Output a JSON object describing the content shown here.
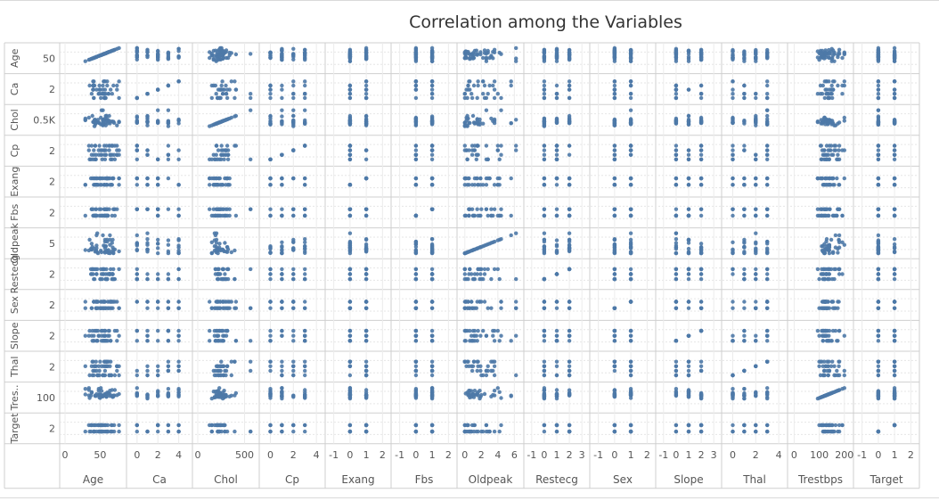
{
  "chart_data": {
    "type": "scatter",
    "title": "Correlation among the Variables",
    "colors": {
      "marks": "#4e79a7",
      "grid": "#d4d4d4",
      "border": "#cfcfcf",
      "text": "#555555"
    },
    "grid": true,
    "variables": [
      {
        "name": "Age",
        "row_label": "Age",
        "y_tick": "50",
        "x_ticks": [
          {
            "v": 0,
            "label": "0"
          },
          {
            "v": 50,
            "label": "50"
          }
        ],
        "x_range": [
          0,
          80
        ],
        "sample": [
          29,
          34,
          35,
          37,
          38,
          39,
          40,
          41,
          41,
          42,
          43,
          44,
          44,
          45,
          45,
          46,
          47,
          48,
          49,
          50,
          51,
          51,
          52,
          52,
          53,
          54,
          54,
          55,
          56,
          56,
          57,
          57,
          58,
          58,
          59,
          59,
          60,
          60,
          61,
          62,
          62,
          63,
          64,
          65,
          66,
          67,
          68,
          69,
          70,
          71,
          74,
          77
        ]
      },
      {
        "name": "Ca",
        "row_label": "Ca",
        "y_tick": "2",
        "x_ticks": [
          {
            "v": 0,
            "label": "0"
          },
          {
            "v": 2,
            "label": "2"
          },
          {
            "v": 4,
            "label": "4"
          }
        ],
        "x_range": [
          -0.5,
          4.8
        ],
        "sample": [
          0,
          1,
          2,
          3,
          4
        ]
      },
      {
        "name": "Chol",
        "row_label": "Chol",
        "y_tick": "0.5K",
        "x_ticks": [
          {
            "v": 0,
            "label": "0"
          },
          {
            "v": 500,
            "label": "500"
          }
        ],
        "x_range": [
          0,
          600
        ],
        "sample": [
          126,
          150,
          170,
          180,
          190,
          197,
          200,
          205,
          210,
          212,
          215,
          220,
          225,
          230,
          233,
          236,
          240,
          245,
          250,
          254,
          258,
          263,
          268,
          270,
          275,
          282,
          290,
          300,
          305,
          315,
          325,
          340,
          360,
          394,
          409,
          564
        ]
      },
      {
        "name": "Cp",
        "row_label": "Cp",
        "y_tick": "2",
        "x_ticks": [
          {
            "v": 0,
            "label": "0"
          },
          {
            "v": 2,
            "label": "2"
          },
          {
            "v": 4,
            "label": "4"
          }
        ],
        "x_range": [
          -0.5,
          4.3
        ],
        "sample": [
          0,
          1,
          2,
          3
        ]
      },
      {
        "name": "Exang",
        "row_label": "Exang",
        "y_tick": "2",
        "x_ticks": [
          {
            "v": -1,
            "label": "-1"
          },
          {
            "v": 0,
            "label": "0"
          },
          {
            "v": 1,
            "label": "1"
          },
          {
            "v": 2,
            "label": "2"
          }
        ],
        "x_range": [
          -1.2,
          2.2
        ],
        "sample": [
          0,
          1
        ]
      },
      {
        "name": "Fbs",
        "row_label": "Fbs",
        "y_tick": "2",
        "x_ticks": [
          {
            "v": -1,
            "label": "-1"
          },
          {
            "v": 0,
            "label": "0"
          },
          {
            "v": 1,
            "label": "1"
          },
          {
            "v": 2,
            "label": "2"
          }
        ],
        "x_range": [
          -1.2,
          2.2
        ],
        "sample": [
          0,
          1
        ]
      },
      {
        "name": "Oldpeak",
        "row_label": "Oldpeak",
        "y_tick": "5",
        "x_ticks": [
          {
            "v": 0,
            "label": "0"
          },
          {
            "v": 2,
            "label": "2"
          },
          {
            "v": 4,
            "label": "4"
          },
          {
            "v": 6,
            "label": "6"
          }
        ],
        "x_range": [
          -0.3,
          6.5
        ],
        "sample": [
          0,
          0,
          0,
          0.1,
          0.2,
          0.3,
          0.4,
          0.5,
          0.6,
          0.8,
          0.9,
          1,
          1.1,
          1.2,
          1.4,
          1.5,
          1.6,
          1.8,
          1.9,
          2,
          2.2,
          2.4,
          2.6,
          2.8,
          3,
          3.2,
          3.4,
          3.6,
          4,
          4.2,
          4.4,
          5.6,
          6.2
        ]
      },
      {
        "name": "Restecg",
        "row_label": "Restecg",
        "y_tick": "2",
        "x_ticks": [
          {
            "v": -1,
            "label": "-1"
          },
          {
            "v": 0,
            "label": "0"
          },
          {
            "v": 1,
            "label": "1"
          },
          {
            "v": 2,
            "label": "2"
          },
          {
            "v": 3,
            "label": "3"
          }
        ],
        "x_range": [
          -1.2,
          3.2
        ],
        "sample": [
          0,
          1,
          2
        ]
      },
      {
        "name": "Sex",
        "row_label": "Sex",
        "y_tick": "2",
        "x_ticks": [
          {
            "v": -1,
            "label": "-1"
          },
          {
            "v": 0,
            "label": "0"
          },
          {
            "v": 1,
            "label": "1"
          },
          {
            "v": 2,
            "label": "2"
          }
        ],
        "x_range": [
          -1.2,
          2.2
        ],
        "sample": [
          0,
          1
        ]
      },
      {
        "name": "Slope",
        "row_label": "Slope",
        "y_tick": "2",
        "x_ticks": [
          {
            "v": -1,
            "label": "-1"
          },
          {
            "v": 0,
            "label": "0"
          },
          {
            "v": 1,
            "label": "1"
          },
          {
            "v": 2,
            "label": "2"
          },
          {
            "v": 3,
            "label": "3"
          }
        ],
        "x_range": [
          -1.2,
          3.2
        ],
        "sample": [
          0,
          1,
          2
        ]
      },
      {
        "name": "Thal",
        "row_label": "Thal",
        "y_tick": "2",
        "x_ticks": [
          {
            "v": 0,
            "label": "0"
          },
          {
            "v": 2,
            "label": "2"
          },
          {
            "v": 4,
            "label": "4"
          }
        ],
        "x_range": [
          -0.5,
          4.3
        ],
        "sample": [
          0,
          1,
          2,
          3
        ]
      },
      {
        "name": "Trestbps",
        "row_label": "Tres..",
        "y_tick": "100",
        "x_ticks": [
          {
            "v": 0,
            "label": "0"
          },
          {
            "v": 100,
            "label": "100"
          },
          {
            "v": 200,
            "label": "200"
          }
        ],
        "x_range": [
          -5,
          215
        ],
        "sample": [
          94,
          100,
          105,
          108,
          110,
          112,
          115,
          118,
          120,
          120,
          122,
          124,
          125,
          126,
          128,
          130,
          130,
          132,
          134,
          135,
          136,
          138,
          140,
          140,
          142,
          145,
          148,
          150,
          152,
          155,
          160,
          165,
          170,
          174,
          178,
          180,
          192,
          200
        ]
      },
      {
        "name": "Target",
        "row_label": "Target",
        "y_tick": "2",
        "x_ticks": [
          {
            "v": -1,
            "label": "-1"
          },
          {
            "v": 0,
            "label": "0"
          },
          {
            "v": 1,
            "label": "1"
          },
          {
            "v": 2,
            "label": "2"
          }
        ],
        "x_range": [
          -1.2,
          2.2
        ],
        "sample": [
          0,
          1
        ]
      }
    ]
  }
}
